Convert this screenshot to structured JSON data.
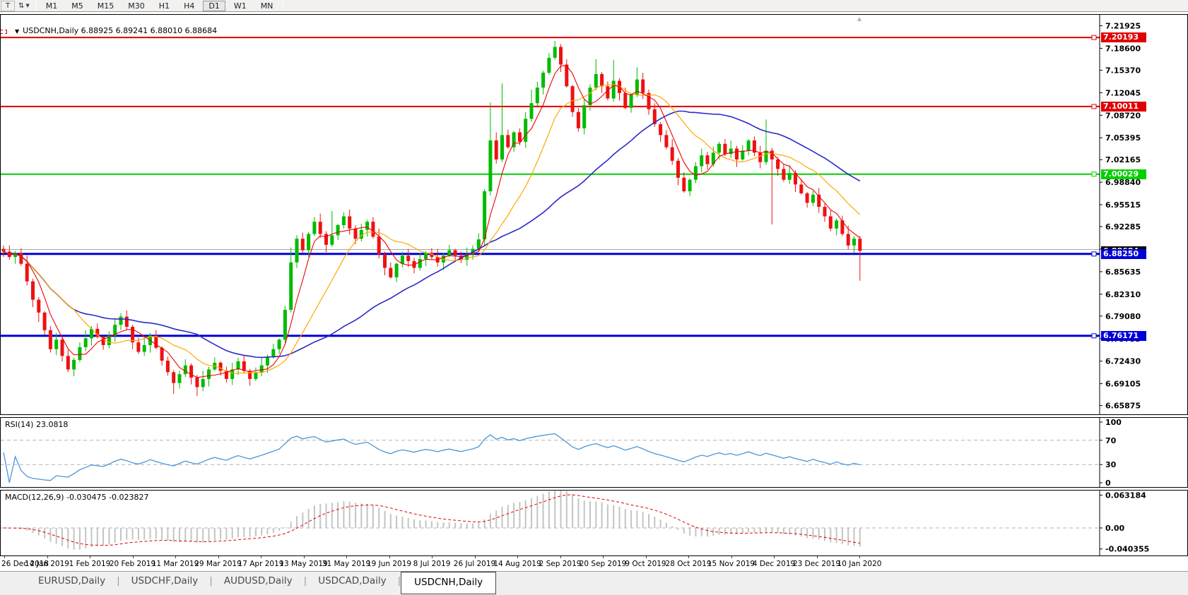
{
  "toolbar": {
    "text_tool": "T",
    "arrows_icon_glyph": "⇅",
    "timeframes": [
      "M1",
      "M5",
      "M15",
      "M30",
      "H1",
      "H4",
      "D1",
      "W1",
      "MN"
    ],
    "active_timeframe": "D1"
  },
  "chart": {
    "title_symbol": "USDCNH,Daily",
    "title_ohlc": "6.88925 6.89241 6.88010 6.88684"
  },
  "rsi_panel": {
    "label": "RSI(14) 23.0818"
  },
  "macd_panel": {
    "label": "MACD(12,26,9) -0.030475 -0.023827"
  },
  "tabs": {
    "items": [
      "EURUSD,Daily",
      "USDCHF,Daily",
      "AUDUSD,Daily",
      "USDCAD,Daily",
      "USDCNH,Daily"
    ],
    "active": "USDCNH,Daily"
  },
  "chart_data": {
    "type": "candlestick",
    "symbol": "USDCNH",
    "period": "Daily",
    "x_labels": [
      "26 Dec 2018",
      "14 Jan 2019",
      "1 Feb 2019",
      "20 Feb 2019",
      "11 Mar 2019",
      "29 Mar 2019",
      "17 Apr 2019",
      "13 May 2019",
      "31 May 2019",
      "19 Jun 2019",
      "8 Jul 2019",
      "26 Jul 2019",
      "14 Aug 2019",
      "2 Sep 2019",
      "20 Sep 2019",
      "9 Oct 2019",
      "28 Oct 2019",
      "15 Nov 2019",
      "4 Dec 2019",
      "23 Dec 2019",
      "10 Jan 2020"
    ],
    "colors": {
      "bull": "#00bb00",
      "bear": "#ee1111",
      "ma_fast": "#f00000",
      "ma_mid": "#ffa800",
      "ma_slow": "#2a2ac8",
      "rsi_line": "#4a96d9",
      "level_dash": "#b4b4b4",
      "macd_hist": "#c4c4c4",
      "macd_signal": "#e00000",
      "axis_text": "#000000"
    },
    "main": {
      "ylim": [
        6.652,
        7.225
      ],
      "y_ticks": [
        "7.21925",
        "7.18600",
        "7.15370",
        "7.12045",
        "7.08720",
        "7.05395",
        "7.02165",
        "6.98840",
        "6.95515",
        "6.92285",
        "6.88965",
        "6.85635",
        "6.82310",
        "6.79080",
        "6.75755",
        "6.72430",
        "6.69105",
        "6.65875"
      ],
      "closes": [
        6.886,
        6.878,
        6.884,
        6.868,
        6.842,
        6.815,
        6.796,
        6.77,
        6.742,
        6.756,
        6.732,
        6.712,
        6.726,
        6.745,
        6.758,
        6.772,
        6.76,
        6.748,
        6.762,
        6.778,
        6.79,
        6.775,
        6.752,
        6.738,
        6.748,
        6.762,
        6.744,
        6.725,
        6.708,
        6.692,
        6.705,
        6.718,
        6.7,
        6.686,
        6.698,
        6.712,
        6.722,
        6.71,
        6.698,
        6.712,
        6.724,
        6.71,
        6.698,
        6.708,
        6.718,
        6.73,
        6.742,
        6.756,
        6.8,
        6.87,
        6.905,
        6.888,
        6.912,
        6.93,
        6.912,
        6.896,
        6.91,
        6.925,
        6.938,
        6.92,
        6.905,
        6.918,
        6.93,
        6.908,
        6.882,
        6.862,
        6.848,
        6.868,
        6.88,
        6.872,
        6.862,
        6.875,
        6.884,
        6.878,
        6.87,
        6.88,
        6.888,
        6.88,
        6.874,
        6.882,
        6.89,
        6.904,
        6.975,
        7.05,
        7.022,
        7.058,
        7.04,
        7.062,
        7.048,
        7.082,
        7.105,
        7.128,
        7.15,
        7.172,
        7.188,
        7.162,
        7.13,
        7.092,
        7.068,
        7.102,
        7.128,
        7.148,
        7.13,
        7.112,
        7.138,
        7.12,
        7.098,
        7.118,
        7.14,
        7.12,
        7.096,
        7.074,
        7.058,
        7.04,
        7.02,
        6.995,
        6.975,
        6.992,
        7.012,
        7.028,
        7.015,
        7.032,
        7.045,
        7.03,
        7.038,
        7.022,
        7.035,
        7.05,
        7.032,
        7.018,
        7.035,
        7.022,
        7.008,
        6.992,
        7.002,
        6.985,
        6.972,
        6.958,
        6.97,
        6.952,
        6.938,
        6.92,
        6.932,
        6.912,
        6.895,
        6.905,
        6.887
      ],
      "wick_pattern_hi": [
        0.005,
        0.009,
        0.003,
        0.007,
        0.012,
        0.004,
        0.008,
        0.002,
        0.006,
        0.01
      ],
      "wick_pattern_lo": [
        0.008,
        0.004,
        0.01,
        0.003,
        0.006,
        0.011,
        0.002,
        0.007,
        0.005,
        0.009
      ],
      "wick_overrides": {
        "6": [
          0.004,
          0.014
        ],
        "29": [
          0.003,
          0.016
        ],
        "33": [
          0.004,
          0.013
        ],
        "49": [
          0.022,
          0.004
        ],
        "56": [
          0.036,
          0.003
        ],
        "83": [
          0.056,
          0.006
        ],
        "85": [
          0.076,
          0.004
        ],
        "90": [
          0.02,
          0.004
        ],
        "94": [
          0.009,
          0.003
        ],
        "101": [
          0.022,
          0.004
        ],
        "104": [
          0.031,
          0.005
        ],
        "108": [
          0.018,
          0.004
        ],
        "130": [
          0.046,
          0.004
        ],
        "131": [
          0.004,
          0.096
        ],
        "146": [
          0.004,
          0.044
        ]
      },
      "ma_periods": {
        "fast": 5,
        "mid": 13,
        "slow": 34
      },
      "hlines": [
        {
          "price": 7.20193,
          "label": "7.20193",
          "color": "#e00000",
          "lw": 2,
          "badge": true,
          "handle": true
        },
        {
          "price": 7.10011,
          "label": "7.10011",
          "color": "#e00000",
          "lw": 2,
          "badge": true,
          "handle": true
        },
        {
          "price": 7.00029,
          "label": "7.00029",
          "color": "#00d000",
          "lw": 2,
          "badge": true,
          "handle": true
        },
        {
          "price": 6.889,
          "label": "",
          "color": "#a8a8a8",
          "lw": 1,
          "badge": false,
          "handle": false
        },
        {
          "price": 6.8825,
          "label": "6.88250",
          "color": "#0000d8",
          "lw": 3,
          "badge": true,
          "handle": true
        },
        {
          "price": 6.76171,
          "label": "6.76171",
          "color": "#0000d8",
          "lw": 3,
          "badge": true,
          "handle": true
        }
      ],
      "price_marker": {
        "price": 6.88684,
        "label": "6.88684",
        "color": "#000000"
      }
    },
    "rsi": {
      "period": 14,
      "current_value": 23.0818,
      "levels": [
        70,
        30
      ],
      "y_ticks": [
        "100",
        "70",
        "30",
        "0"
      ],
      "ylim": [
        0,
        100
      ]
    },
    "macd": {
      "params": [
        12,
        26,
        9
      ],
      "main_value": -0.030475,
      "signal_value": -0.023827,
      "y_ticks": [
        "0.063184",
        "0.00",
        "-0.040355"
      ],
      "ylim": [
        -0.0475,
        0.0665
      ]
    }
  }
}
